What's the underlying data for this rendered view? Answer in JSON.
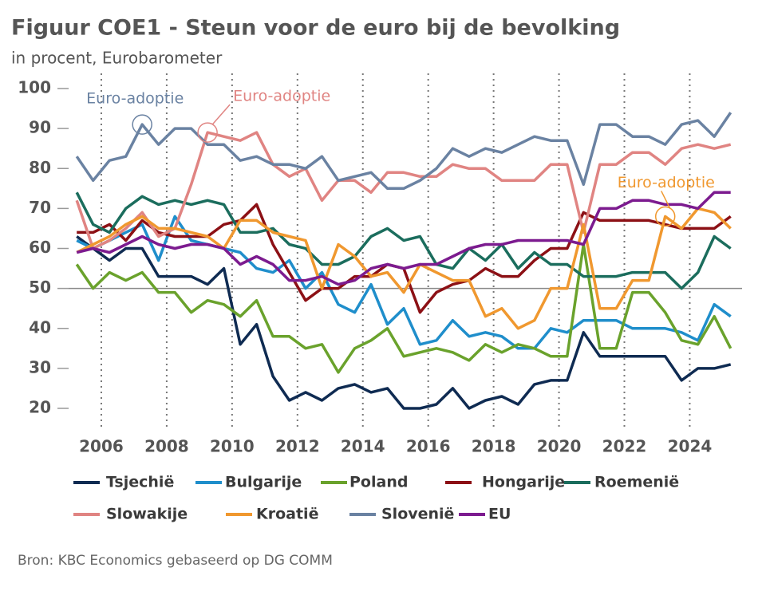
{
  "chart_data": {
    "type": "line",
    "title": "Figuur COE1 - Steun voor de euro bij de bevolking",
    "subtitle": "in procent, Eurobarometer",
    "source": "Bron: KBC Economics gebaseerd op DG COMM",
    "x": [
      2005.25,
      2005.75,
      2006.25,
      2006.75,
      2007.25,
      2007.75,
      2008.25,
      2008.75,
      2009.25,
      2009.75,
      2010.25,
      2010.75,
      2011.25,
      2011.75,
      2012.25,
      2012.75,
      2013.25,
      2013.75,
      2014.25,
      2014.75,
      2015.25,
      2015.75,
      2016.25,
      2016.75,
      2017.25,
      2017.75,
      2018.25,
      2018.75,
      2019.25,
      2019.75,
      2020.25,
      2020.75,
      2021.25,
      2021.75,
      2022.25,
      2022.75,
      2023.25,
      2023.75,
      2024.25,
      2024.75,
      2025.25
    ],
    "xlim": [
      2005,
      2025.6
    ],
    "xticks": [
      2006,
      2008,
      2010,
      2012,
      2014,
      2016,
      2018,
      2020,
      2022,
      2024
    ],
    "ylim": [
      20,
      100
    ],
    "yticks": [
      20,
      30,
      40,
      50,
      60,
      70,
      80,
      90,
      100
    ],
    "reference_line": 50,
    "grid": "x",
    "series": [
      {
        "name": "Tsjechië",
        "color": "#0f2b52",
        "values": [
          63,
          60,
          57,
          60,
          60,
          53,
          53,
          53,
          51,
          55,
          36,
          41,
          28,
          22,
          24,
          22,
          25,
          26,
          24,
          25,
          20,
          20,
          21,
          25,
          20,
          22,
          23,
          21,
          26,
          27,
          27,
          39,
          33,
          33,
          33,
          33,
          33,
          27,
          30,
          30,
          31
        ]
      },
      {
        "name": "Bulgarije",
        "color": "#1f8ecb",
        "values": [
          62,
          60,
          62,
          64,
          66,
          57,
          68,
          62,
          61,
          60,
          59,
          55,
          54,
          57,
          50,
          54,
          46,
          44,
          51,
          41,
          45,
          36,
          37,
          42,
          38,
          39,
          38,
          35,
          35,
          40,
          39,
          42,
          42,
          42,
          40,
          40,
          40,
          39,
          37,
          46,
          43
        ]
      },
      {
        "name": "Poland",
        "color": "#6aa22c",
        "values": [
          56,
          50,
          54,
          52,
          54,
          49,
          49,
          44,
          47,
          46,
          43,
          47,
          38,
          38,
          35,
          36,
          29,
          35,
          37,
          40,
          33,
          34,
          35,
          34,
          32,
          36,
          34,
          36,
          35,
          33,
          33,
          61,
          35,
          35,
          49,
          49,
          44,
          37,
          36,
          43,
          35
        ]
      },
      {
        "name": "Hongarije",
        "color": "#8c1015",
        "values": [
          64,
          64,
          66,
          62,
          67,
          64,
          63,
          63,
          63,
          66,
          67,
          71,
          61,
          54,
          47,
          50,
          50,
          53,
          53,
          56,
          55,
          44,
          49,
          51,
          52,
          55,
          53,
          53,
          57,
          60,
          60,
          69,
          67,
          67,
          67,
          67,
          66,
          65,
          65,
          65,
          68
        ]
      },
      {
        "name": "Roemenië",
        "color": "#1b6d5d",
        "values": [
          74,
          66,
          64,
          70,
          73,
          71,
          72,
          71,
          72,
          71,
          64,
          64,
          65,
          61,
          60,
          56,
          56,
          58,
          63,
          65,
          62,
          63,
          56,
          55,
          60,
          57,
          61,
          55,
          59,
          56,
          56,
          53,
          53,
          53,
          54,
          54,
          54,
          50,
          54,
          63,
          60
        ]
      },
      {
        "name": "Slowakije",
        "color": "#e08482",
        "values": [
          72,
          60,
          62,
          65,
          69,
          63,
          65,
          76,
          89,
          88,
          87,
          89,
          81,
          78,
          80,
          72,
          77,
          77,
          74,
          79,
          79,
          78,
          78,
          81,
          80,
          80,
          77,
          77,
          77,
          81,
          81,
          64,
          81,
          81,
          84,
          84,
          81,
          85,
          86,
          85,
          86
        ]
      },
      {
        "name": "Kroatië",
        "color": "#f0982f",
        "values": [
          59,
          61,
          63,
          66,
          68,
          65,
          65,
          64,
          63,
          60,
          67,
          67,
          64,
          63,
          62,
          50,
          61,
          58,
          53,
          54,
          49,
          56,
          54,
          52,
          52,
          43,
          45,
          40,
          42,
          50,
          50,
          66,
          45,
          45,
          52,
          52,
          68,
          65,
          70,
          69,
          65
        ]
      },
      {
        "name": "Slovenië",
        "color": "#6a82a2",
        "values": [
          83,
          77,
          82,
          83,
          91,
          86,
          90,
          90,
          86,
          86,
          82,
          83,
          81,
          81,
          80,
          83,
          77,
          78,
          79,
          75,
          75,
          77,
          80,
          85,
          83,
          85,
          84,
          86,
          88,
          87,
          87,
          76,
          91,
          91,
          88,
          88,
          86,
          91,
          92,
          88,
          94
        ]
      },
      {
        "name": "EU",
        "color": "#7c1b8f",
        "values": [
          59,
          60,
          59,
          61,
          63,
          61,
          60,
          61,
          61,
          60,
          56,
          58,
          56,
          52,
          52,
          53,
          51,
          52,
          55,
          56,
          55,
          56,
          56,
          58,
          60,
          61,
          61,
          62,
          62,
          62,
          62,
          61,
          70,
          70,
          72,
          72,
          71,
          71,
          70,
          74,
          74
        ]
      }
    ],
    "annotations": [
      {
        "text": "Euro-adoptie",
        "x": 2007.25,
        "y": 91,
        "color": "#6a82a2"
      },
      {
        "text": "Euro-adoptie",
        "x": 2009.25,
        "y": 89,
        "color": "#e08482"
      },
      {
        "text": "Euro-adoptie",
        "x": 2023.25,
        "y": 68,
        "color": "#f0982f"
      }
    ]
  }
}
